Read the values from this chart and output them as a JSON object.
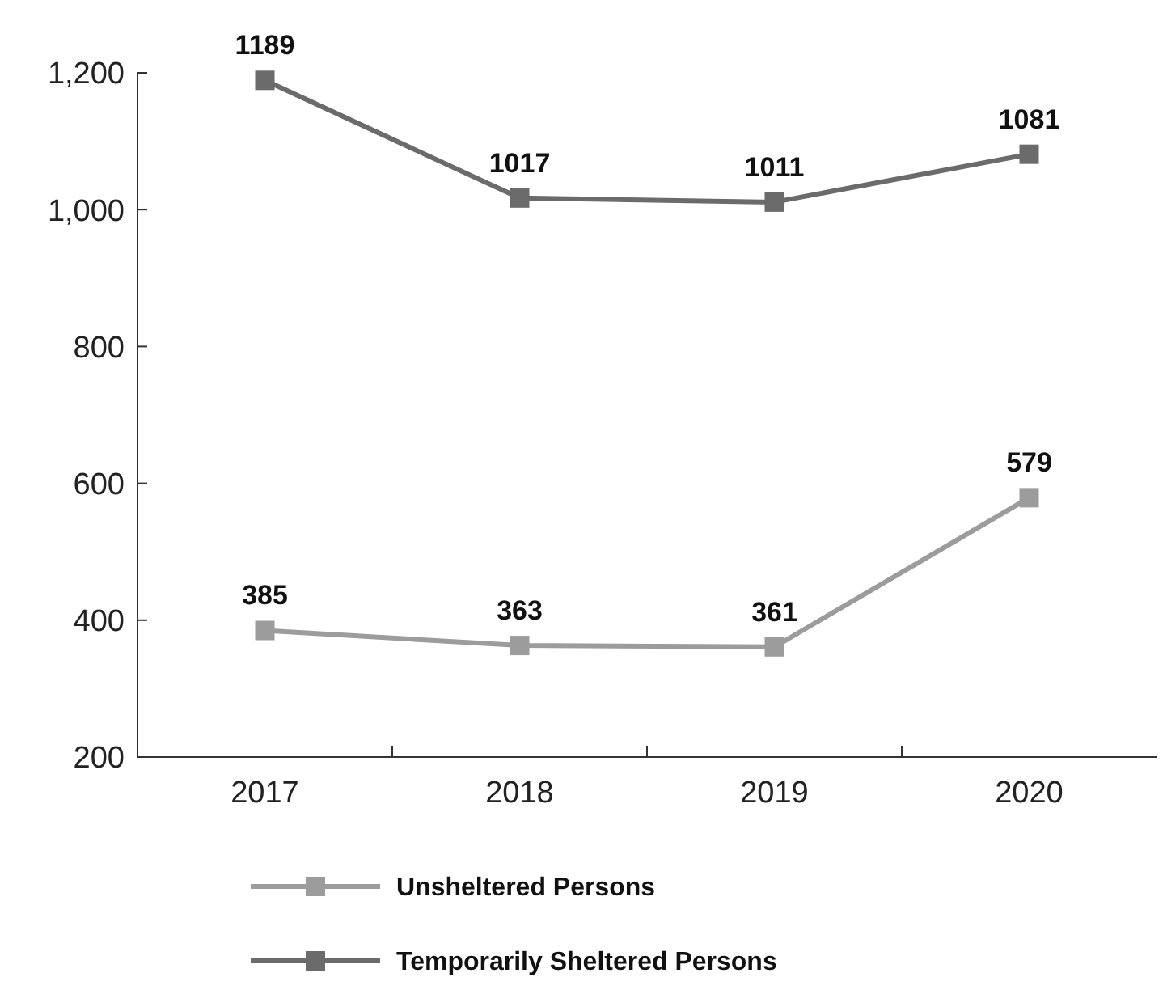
{
  "chart_data": {
    "type": "line",
    "categories": [
      "2017",
      "2018",
      "2019",
      "2020"
    ],
    "series": [
      {
        "name": "Unsheltered Persons",
        "color": "#9c9c9c",
        "values": [
          385,
          363,
          361,
          579
        ]
      },
      {
        "name": "Temporarily Sheltered Persons",
        "color": "#6b6b6b",
        "values": [
          1189,
          1017,
          1011,
          1081
        ]
      }
    ],
    "ylim": [
      200,
      1200
    ],
    "yticks": [
      200,
      400,
      600,
      800,
      {
        "value": 1000,
        "label": "1,000"
      },
      {
        "value": 1200,
        "label": "1,200"
      }
    ],
    "grid": false,
    "legend": "bottom",
    "marker": "square",
    "line_style": "solid",
    "data_labels": true
  }
}
